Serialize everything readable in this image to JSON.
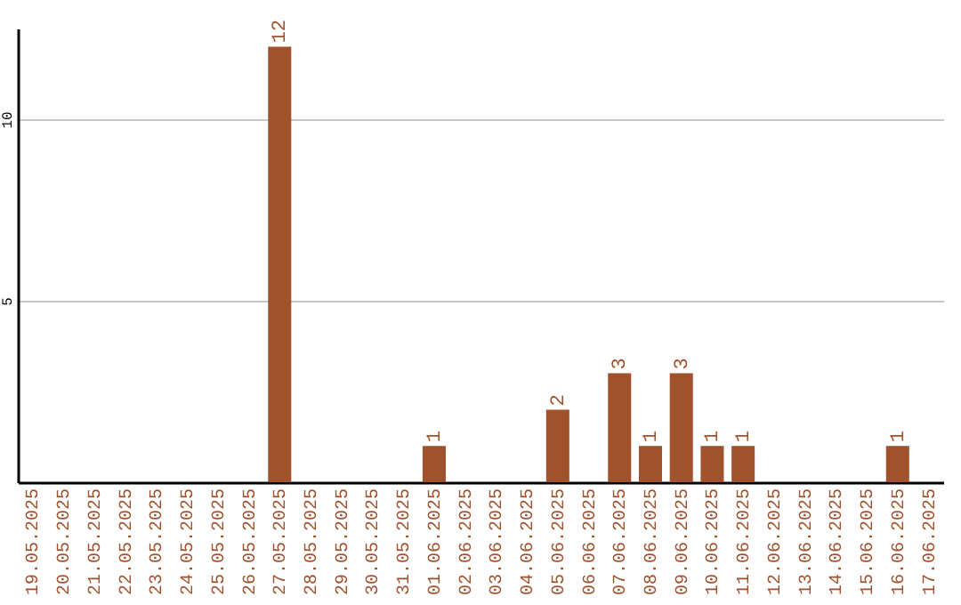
{
  "chart_data": {
    "type": "bar",
    "categories": [
      "19.05.2025",
      "20.05.2025",
      "21.05.2025",
      "22.05.2025",
      "23.05.2025",
      "24.05.2025",
      "25.05.2025",
      "26.05.2025",
      "27.05.2025",
      "28.05.2025",
      "29.05.2025",
      "30.05.2025",
      "31.05.2025",
      "01.06.2025",
      "02.06.2025",
      "03.06.2025",
      "04.06.2025",
      "05.06.2025",
      "06.06.2025",
      "07.06.2025",
      "08.06.2025",
      "09.06.2025",
      "10.06.2025",
      "11.06.2025",
      "12.06.2025",
      "13.06.2025",
      "14.06.2025",
      "15.06.2025",
      "16.06.2025",
      "17.06.2025"
    ],
    "values": [
      0,
      0,
      0,
      0,
      0,
      0,
      0,
      0,
      12,
      0,
      0,
      0,
      0,
      1,
      0,
      0,
      0,
      2,
      0,
      3,
      1,
      3,
      1,
      1,
      0,
      0,
      0,
      0,
      1,
      0
    ],
    "value_labels": [
      null,
      null,
      null,
      null,
      null,
      null,
      null,
      null,
      "12",
      null,
      null,
      null,
      null,
      "1",
      null,
      null,
      null,
      "2",
      null,
      "3",
      "1",
      "3",
      "1",
      "1",
      null,
      null,
      null,
      null,
      "1",
      null
    ],
    "color": "#a0522d",
    "ylim": [
      0,
      12.5
    ],
    "yticks": [
      5,
      10
    ],
    "grid": "y"
  }
}
